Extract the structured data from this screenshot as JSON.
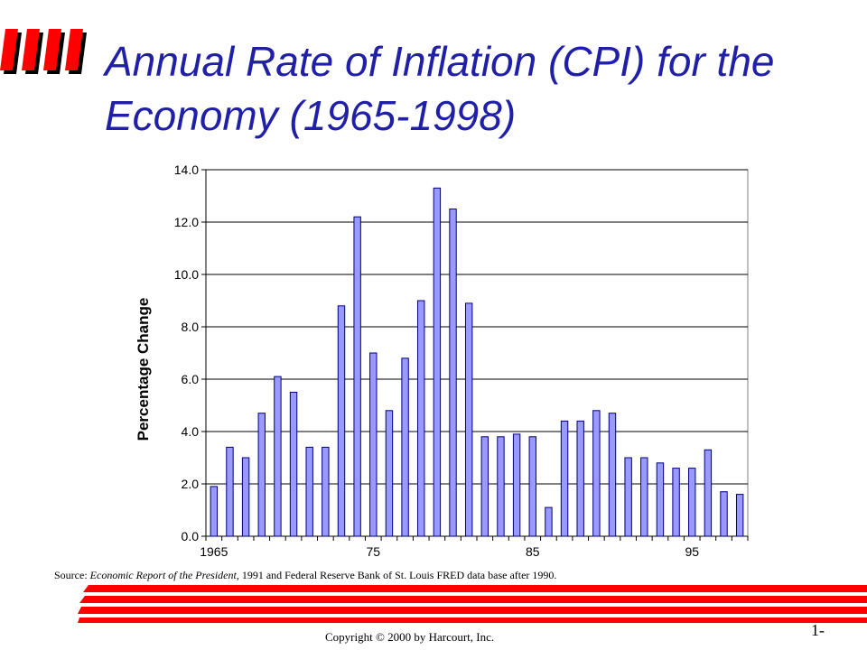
{
  "slide": {
    "title": "Annual Rate of Inflation (CPI) for the Economy (1965-1998)",
    "source_prefix": "Source: ",
    "source_title": "Economic Report of the President,",
    "source_rest": " 1991 and Federal Reserve Bank of St. Louis FRED data base after 1990.",
    "copyright": "Copyright © 2000 by Harcourt, Inc.",
    "page_number": "1-",
    "accent_color": "#ff0000",
    "title_color": "#1f1fa8"
  },
  "chart_data": {
    "type": "bar",
    "title": "",
    "xlabel": "",
    "ylabel": "Percentage Change",
    "categories": [
      "1965",
      "1966",
      "1967",
      "1968",
      "1969",
      "1970",
      "1971",
      "1972",
      "1973",
      "1974",
      "1975",
      "1976",
      "1977",
      "1978",
      "1979",
      "1980",
      "1981",
      "1982",
      "1983",
      "1984",
      "1985",
      "1986",
      "1987",
      "1988",
      "1989",
      "1990",
      "1991",
      "1992",
      "1993",
      "1994",
      "1995",
      "1996",
      "1997",
      "1998"
    ],
    "values": [
      1.9,
      3.4,
      3.0,
      4.7,
      6.1,
      5.5,
      3.4,
      3.4,
      8.8,
      12.2,
      7.0,
      4.8,
      6.8,
      9.0,
      13.3,
      12.5,
      8.9,
      3.8,
      3.8,
      3.9,
      3.8,
      1.1,
      4.4,
      4.4,
      4.8,
      4.7,
      3.0,
      3.0,
      2.8,
      2.6,
      2.6,
      3.3,
      1.7,
      1.6
    ],
    "x_tick_labels": [
      {
        "index": 0,
        "label": "1965"
      },
      {
        "index": 10,
        "label": "75"
      },
      {
        "index": 20,
        "label": "85"
      },
      {
        "index": 30,
        "label": "95"
      }
    ],
    "y_tick_labels": [
      "0.0",
      "2.0",
      "4.0",
      "6.0",
      "8.0",
      "10.0",
      "12.0",
      "14.0"
    ],
    "ylim": [
      0,
      14
    ],
    "grid": true,
    "bar_color": "#9999ff",
    "bar_edge": "#000080"
  }
}
